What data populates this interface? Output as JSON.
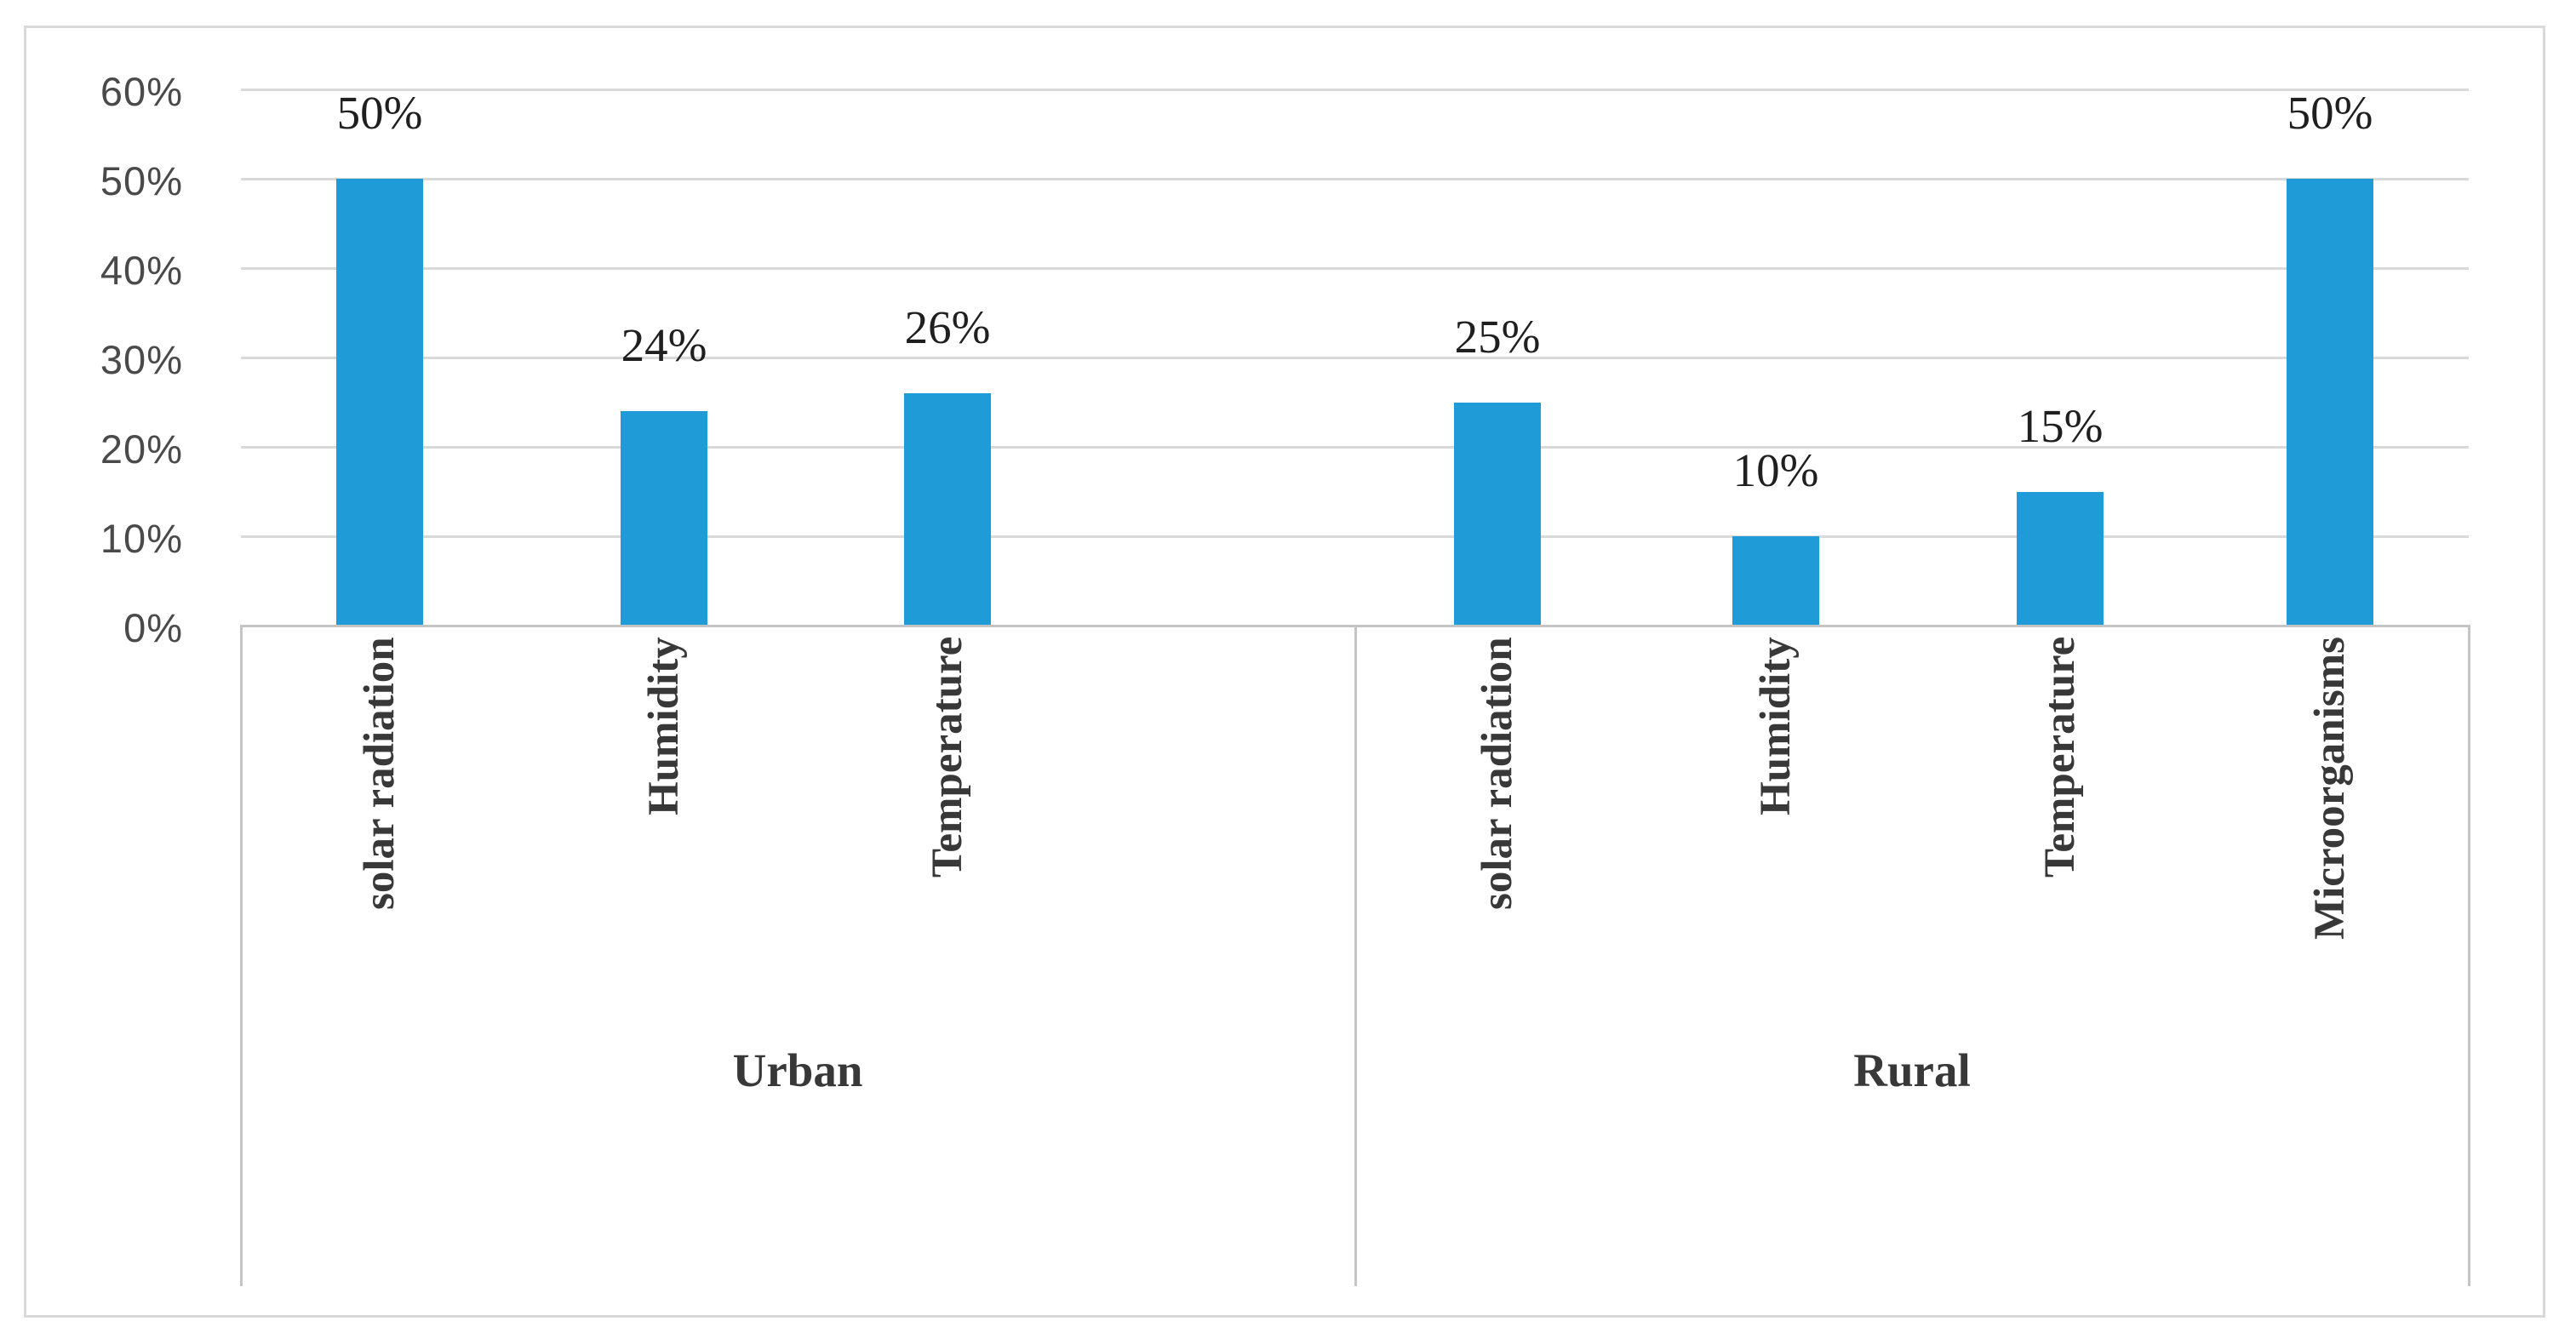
{
  "chart_data": {
    "type": "bar",
    "title": "",
    "xlabel": "",
    "ylabel": "",
    "ylim": [
      0,
      60
    ],
    "y_tick_step": 10,
    "y_tick_labels": [
      "60%",
      "50%",
      "40%",
      "30%",
      "20%",
      "10%",
      "0%"
    ],
    "grid": true,
    "legend": false,
    "groups": [
      {
        "label": "Urban",
        "categories": [
          "solar radiation",
          "Humidity",
          "Temperature"
        ],
        "values": [
          50,
          24,
          26
        ],
        "data_labels": [
          "50%",
          "24%",
          "26%"
        ]
      },
      {
        "label": "Rural",
        "categories": [
          "solar radiation",
          "Humidity",
          "Temperature",
          "Microorganisms"
        ],
        "values": [
          25,
          10,
          15,
          50
        ],
        "data_labels": [
          "25%",
          "10%",
          "15%",
          "50%"
        ]
      }
    ]
  },
  "colors": {
    "bar": "#1f9cd8",
    "gridline": "#d9d9d9",
    "axis_line": "#c4c4c4",
    "figure_border": "#d9d9d9",
    "tick_text": "#4a4a4a",
    "data_label_text": "#1f1f1f",
    "category_text": "#383838",
    "group_text": "#383838",
    "background": "#ffffff"
  }
}
